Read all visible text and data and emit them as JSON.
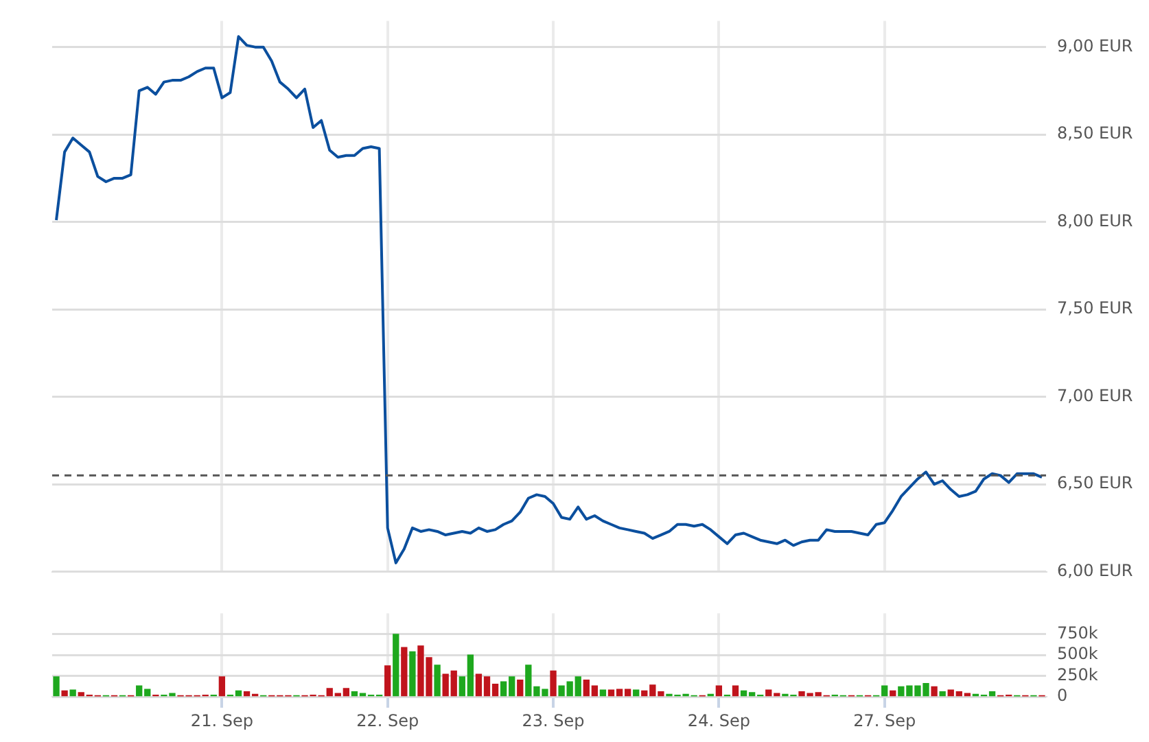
{
  "chart_data": [
    {
      "type": "line",
      "color": "#0b4f9e",
      "line_style": "solid",
      "grid": true,
      "tick_labels": "y",
      "categories": [
        null,
        null,
        null,
        null,
        null,
        null,
        null,
        null,
        null,
        null,
        null,
        null,
        null,
        null,
        null,
        null,
        null,
        null,
        null,
        null,
        null,
        null,
        null,
        null,
        null,
        null,
        null,
        null,
        null,
        null,
        null,
        null,
        null,
        null,
        null,
        null,
        null,
        null,
        null,
        null,
        null,
        null,
        null,
        null,
        null,
        null,
        null,
        null,
        null,
        null,
        null,
        null,
        null,
        null,
        null,
        null,
        null,
        null,
        null,
        null,
        null,
        null,
        null,
        null,
        null,
        null,
        null,
        null,
        null,
        null,
        null,
        null,
        null,
        null,
        null,
        null,
        null,
        null,
        null,
        null,
        null,
        null,
        null,
        null,
        null,
        null,
        null,
        null,
        null,
        null,
        null,
        null,
        null,
        null,
        null,
        null,
        null,
        null,
        null,
        null,
        null,
        null,
        null,
        null,
        null,
        null,
        null,
        null,
        null,
        null,
        null,
        null,
        null,
        null,
        null,
        null,
        null,
        null,
        null,
        null
      ],
      "values": [
        8.01,
        8.4,
        8.48,
        8.44,
        8.4,
        8.26,
        8.23,
        8.25,
        8.25,
        8.27,
        8.75,
        8.77,
        8.73,
        8.8,
        8.81,
        8.81,
        8.83,
        8.86,
        8.88,
        8.88,
        8.71,
        8.74,
        9.06,
        9.01,
        9.0,
        9.0,
        8.92,
        8.8,
        8.76,
        8.71,
        8.76,
        8.54,
        8.58,
        8.41,
        8.37,
        8.38,
        8.38,
        8.42,
        8.43,
        8.42,
        6.25,
        6.05,
        6.13,
        6.25,
        6.23,
        6.24,
        6.23,
        6.21,
        6.22,
        6.23,
        6.22,
        6.25,
        6.23,
        6.24,
        6.27,
        6.29,
        6.34,
        6.42,
        6.44,
        6.43,
        6.39,
        6.31,
        6.3,
        6.37,
        6.3,
        6.32,
        6.29,
        6.27,
        6.25,
        6.24,
        6.23,
        6.22,
        6.19,
        6.21,
        6.23,
        6.27,
        6.27,
        6.26,
        6.27,
        6.24,
        6.2,
        6.16,
        6.21,
        6.22,
        6.2,
        6.18,
        6.17,
        6.16,
        6.18,
        6.15,
        6.17,
        6.18,
        6.18,
        6.24,
        6.23,
        6.23,
        6.23,
        6.22,
        6.21,
        6.27,
        6.28,
        6.35,
        6.43,
        6.48,
        6.53,
        6.57,
        6.5,
        6.52,
        6.47,
        6.43,
        6.44,
        6.46,
        6.53,
        6.56,
        6.55,
        6.51,
        6.56,
        6.56,
        6.56,
        6.54
      ],
      "ylim": [
        6,
        9.15
      ],
      "yticks": [
        {
          "value": 6,
          "label": "6,00 EUR"
        },
        {
          "value": 6.5,
          "label": "6,50 EUR"
        },
        {
          "value": 7,
          "label": "7,00 EUR"
        },
        {
          "value": 7.5,
          "label": "7,50 EUR"
        },
        {
          "value": 8,
          "label": "8,00 EUR"
        },
        {
          "value": 8.5,
          "label": "8,50 EUR"
        },
        {
          "value": 9,
          "label": "9,00 EUR"
        }
      ],
      "ref_lines": [
        {
          "axis": "y",
          "value": 6.55,
          "color": "#555555",
          "line_style": "dashed"
        }
      ]
    },
    {
      "type": "bar",
      "grid": true,
      "categories": [
        null,
        null,
        null,
        null,
        null,
        null,
        null,
        null,
        null,
        null,
        null,
        null,
        null,
        null,
        null,
        null,
        null,
        null,
        null,
        null,
        "21. Sep",
        null,
        null,
        null,
        null,
        null,
        null,
        null,
        null,
        null,
        null,
        null,
        null,
        null,
        null,
        null,
        null,
        null,
        null,
        null,
        "22. Sep",
        null,
        null,
        null,
        null,
        null,
        null,
        null,
        null,
        null,
        null,
        null,
        null,
        null,
        null,
        null,
        null,
        null,
        null,
        null,
        "23. Sep",
        null,
        null,
        null,
        null,
        null,
        null,
        null,
        null,
        null,
        null,
        null,
        null,
        null,
        null,
        null,
        null,
        null,
        null,
        null,
        "24. Sep",
        null,
        null,
        null,
        null,
        null,
        null,
        null,
        null,
        null,
        null,
        null,
        null,
        null,
        null,
        null,
        null,
        null,
        null,
        null,
        "27. Sep",
        null,
        null,
        null,
        null,
        null,
        null,
        null,
        null,
        null,
        null,
        null,
        null,
        null,
        null,
        null,
        null,
        null,
        null,
        null
      ],
      "values": [
        240000,
        70000,
        80000,
        50000,
        20000,
        10000,
        10000,
        10000,
        10000,
        10000,
        130000,
        90000,
        20000,
        20000,
        40000,
        10000,
        10000,
        10000,
        20000,
        20000,
        240000,
        20000,
        70000,
        60000,
        30000,
        10000,
        10000,
        10000,
        10000,
        10000,
        10000,
        20000,
        10000,
        100000,
        40000,
        100000,
        60000,
        40000,
        20000,
        20000,
        370000,
        750000,
        590000,
        540000,
        610000,
        470000,
        380000,
        270000,
        310000,
        240000,
        500000,
        270000,
        240000,
        150000,
        180000,
        240000,
        200000,
        380000,
        120000,
        90000,
        310000,
        130000,
        180000,
        240000,
        200000,
        130000,
        80000,
        80000,
        90000,
        90000,
        80000,
        70000,
        140000,
        60000,
        30000,
        20000,
        30000,
        10000,
        10000,
        30000,
        130000,
        20000,
        130000,
        70000,
        50000,
        20000,
        80000,
        40000,
        30000,
        20000,
        60000,
        40000,
        50000,
        10000,
        20000,
        10000,
        10000,
        10000,
        10000,
        10000,
        130000,
        70000,
        120000,
        130000,
        130000,
        160000,
        120000,
        60000,
        80000,
        60000,
        40000,
        30000,
        20000,
        60000,
        10000,
        20000,
        10000,
        10000,
        10000,
        10000
      ],
      "colors": [
        "#1ea81e",
        "#c0141c",
        "#1ea81e",
        "#c0141c",
        "#c0141c",
        "#c0141c",
        "#1ea81e",
        "#c0141c",
        "#1ea81e",
        "#c0141c",
        "#1ea81e",
        "#1ea81e",
        "#c0141c",
        "#1ea81e",
        "#1ea81e",
        "#c0141c",
        "#c0141c",
        "#c0141c",
        "#c0141c",
        "#1ea81e",
        "#c0141c",
        "#1ea81e",
        "#1ea81e",
        "#c0141c",
        "#c0141c",
        "#1ea81e",
        "#c0141c",
        "#c0141c",
        "#c0141c",
        "#1ea81e",
        "#c0141c",
        "#c0141c",
        "#c0141c",
        "#c0141c",
        "#c0141c",
        "#c0141c",
        "#1ea81e",
        "#1ea81e",
        "#1ea81e",
        "#1ea81e",
        "#c0141c",
        "#1ea81e",
        "#c0141c",
        "#1ea81e",
        "#c0141c",
        "#c0141c",
        "#1ea81e",
        "#c0141c",
        "#c0141c",
        "#1ea81e",
        "#1ea81e",
        "#c0141c",
        "#c0141c",
        "#c0141c",
        "#1ea81e",
        "#1ea81e",
        "#c0141c",
        "#1ea81e",
        "#1ea81e",
        "#1ea81e",
        "#c0141c",
        "#1ea81e",
        "#1ea81e",
        "#1ea81e",
        "#c0141c",
        "#c0141c",
        "#1ea81e",
        "#c0141c",
        "#c0141c",
        "#c0141c",
        "#1ea81e",
        "#c0141c",
        "#c0141c",
        "#c0141c",
        "#1ea81e",
        "#1ea81e",
        "#1ea81e",
        "#1ea81e",
        "#c0141c",
        "#1ea81e",
        "#c0141c",
        "#1ea81e",
        "#c0141c",
        "#1ea81e",
        "#1ea81e",
        "#1ea81e",
        "#c0141c",
        "#c0141c",
        "#1ea81e",
        "#1ea81e",
        "#c0141c",
        "#c0141c",
        "#c0141c",
        "#c0141c",
        "#1ea81e",
        "#1ea81e",
        "#c0141c",
        "#1ea81e",
        "#c0141c",
        "#1ea81e",
        "#1ea81e",
        "#c0141c",
        "#1ea81e",
        "#1ea81e",
        "#1ea81e",
        "#1ea81e",
        "#c0141c",
        "#1ea81e",
        "#c0141c",
        "#c0141c",
        "#c0141c",
        "#1ea81e",
        "#1ea81e",
        "#1ea81e",
        "#c0141c",
        "#c0141c",
        "#1ea81e",
        "#c0141c",
        "#1ea81e",
        "#c0141c"
      ],
      "ylim": [
        0,
        1000000
      ],
      "yticks": [
        0,
        {
          "value": 250000,
          "label": "250k"
        },
        {
          "value": 500000,
          "label": "500k"
        },
        {
          "value": 750000,
          "label": "750k"
        }
      ]
    }
  ]
}
